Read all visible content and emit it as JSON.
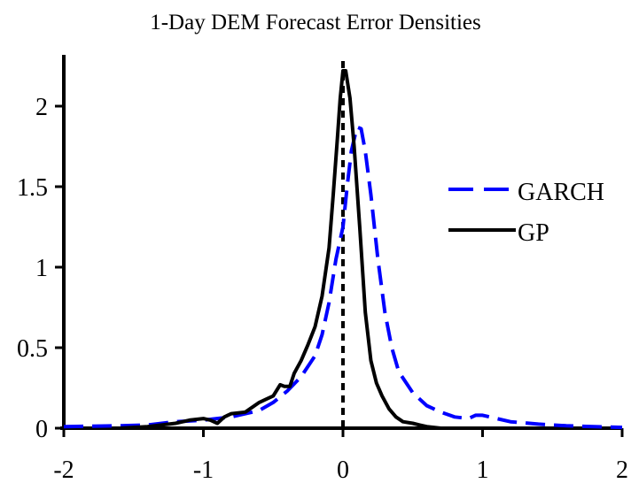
{
  "chart_data": {
    "type": "line",
    "title": "1-Day DEM Forecast Error Densities",
    "xlabel": "",
    "ylabel": "",
    "xlim": [
      -2,
      2
    ],
    "ylim": [
      0,
      2.3
    ],
    "x_ticks": [
      -2,
      -1,
      0,
      1,
      2
    ],
    "x_tick_labels": [
      "-2",
      "-1",
      "0",
      "1",
      "2"
    ],
    "y_ticks": [
      0,
      0.5,
      1,
      1.5,
      2
    ],
    "y_tick_labels": [
      "0",
      "0.5",
      "1",
      "1.5",
      "2"
    ],
    "legend_position": "right",
    "vertical_reference_line": {
      "x": 0,
      "style": "dotted",
      "color": "#000000"
    },
    "series": [
      {
        "name": "GARCH",
        "color": "#0000ff",
        "dash": "dashed",
        "x": [
          -2.0,
          -1.6,
          -1.4,
          -1.2,
          -1.0,
          -0.8,
          -0.6,
          -0.5,
          -0.4,
          -0.3,
          -0.2,
          -0.15,
          -0.1,
          -0.05,
          0.0,
          0.03,
          0.06,
          0.1,
          0.13,
          0.16,
          0.2,
          0.25,
          0.3,
          0.35,
          0.4,
          0.5,
          0.6,
          0.7,
          0.8,
          0.9,
          0.95,
          1.0,
          1.1,
          1.2,
          1.4,
          1.6,
          1.8,
          2.0
        ],
        "y": [
          0.01,
          0.015,
          0.02,
          0.04,
          0.05,
          0.07,
          0.11,
          0.16,
          0.23,
          0.32,
          0.45,
          0.58,
          0.78,
          1.05,
          1.25,
          1.5,
          1.72,
          1.87,
          1.86,
          1.72,
          1.45,
          1.05,
          0.72,
          0.5,
          0.35,
          0.22,
          0.14,
          0.1,
          0.07,
          0.06,
          0.08,
          0.08,
          0.06,
          0.04,
          0.025,
          0.015,
          0.01,
          0.005
        ]
      },
      {
        "name": "GP",
        "color": "#000000",
        "dash": "solid",
        "x": [
          -1.6,
          -1.4,
          -1.2,
          -1.1,
          -1.0,
          -0.95,
          -0.9,
          -0.85,
          -0.8,
          -0.7,
          -0.6,
          -0.55,
          -0.5,
          -0.45,
          -0.42,
          -0.38,
          -0.35,
          -0.3,
          -0.25,
          -0.2,
          -0.15,
          -0.1,
          -0.07,
          -0.04,
          -0.02,
          0.0,
          0.02,
          0.05,
          0.08,
          0.12,
          0.16,
          0.2,
          0.24,
          0.28,
          0.33,
          0.38,
          0.43,
          0.5,
          0.55,
          0.6,
          0.7,
          0.8,
          0.9,
          1.0
        ],
        "y": [
          0.0,
          0.01,
          0.03,
          0.05,
          0.06,
          0.05,
          0.03,
          0.07,
          0.09,
          0.1,
          0.16,
          0.18,
          0.2,
          0.27,
          0.26,
          0.26,
          0.34,
          0.42,
          0.52,
          0.63,
          0.82,
          1.12,
          1.45,
          1.8,
          2.05,
          2.22,
          2.22,
          2.05,
          1.75,
          1.25,
          0.72,
          0.42,
          0.28,
          0.2,
          0.12,
          0.07,
          0.04,
          0.03,
          0.02,
          0.01,
          0.0,
          0.0,
          0.0,
          0.0
        ]
      }
    ]
  }
}
